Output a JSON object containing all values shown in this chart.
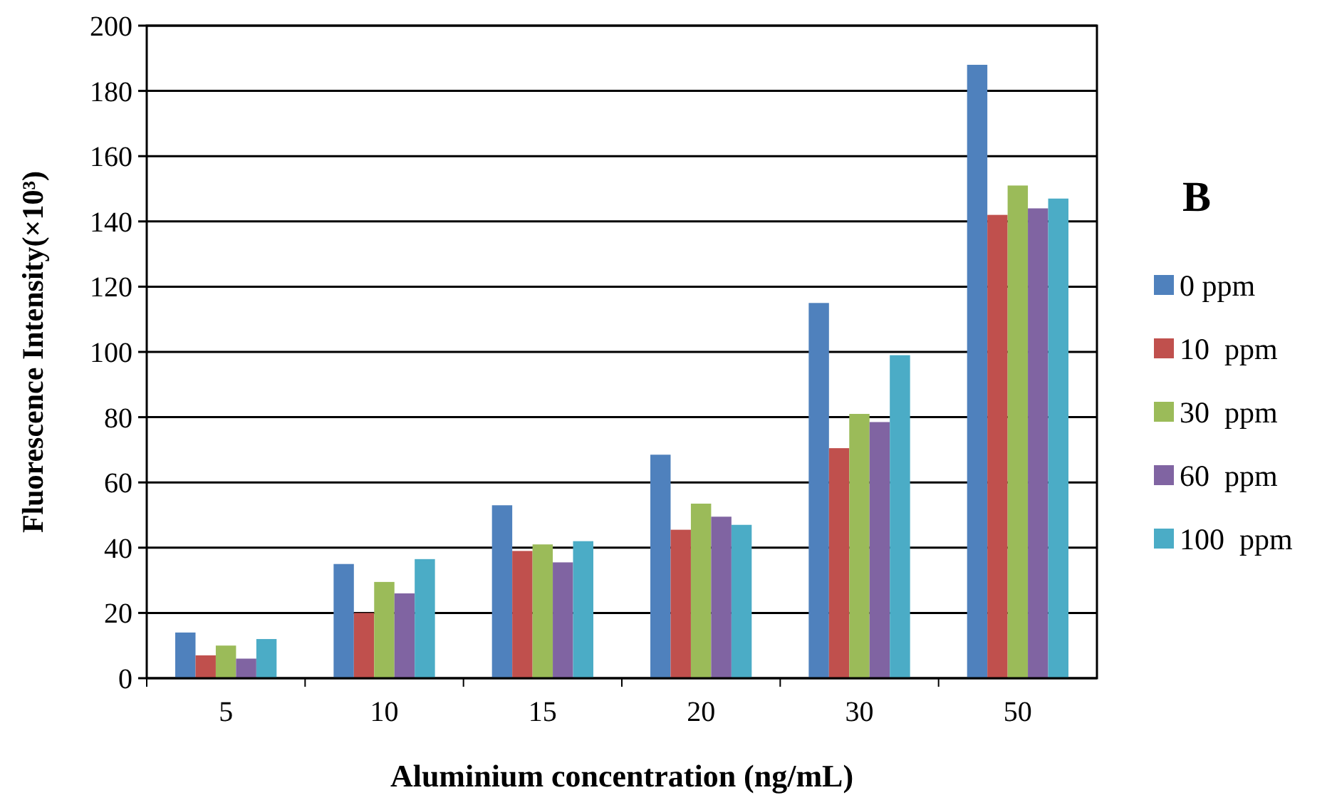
{
  "chart_data": {
    "type": "bar",
    "title": "B",
    "xlabel": "Aluminium concentration (ng/mL)",
    "ylabel": "Fluorescence Intensity(×10³)",
    "categories": [
      "5",
      "10",
      "15",
      "20",
      "30",
      "50"
    ],
    "series": [
      {
        "name": "0 ppm",
        "color": "#4f81bd",
        "values": [
          14,
          35,
          53,
          68.5,
          115,
          188
        ]
      },
      {
        "name": "10  ppm",
        "color": "#c0504d",
        "values": [
          7,
          20,
          39,
          45.5,
          70.5,
          142
        ]
      },
      {
        "name": "30  ppm",
        "color": "#9bbb59",
        "values": [
          10,
          29.5,
          41,
          53.5,
          81,
          151
        ]
      },
      {
        "name": "60  ppm",
        "color": "#8064a2",
        "values": [
          6,
          26,
          35.5,
          49.5,
          78.5,
          144
        ]
      },
      {
        "name": "100  ppm",
        "color": "#4bacc6",
        "values": [
          12,
          36.5,
          42,
          47,
          99,
          147
        ]
      }
    ],
    "ylim": [
      0,
      200
    ],
    "yticks": [
      0,
      20,
      40,
      60,
      80,
      100,
      120,
      140,
      160,
      180,
      200
    ],
    "grid": "y",
    "legend": "right"
  }
}
